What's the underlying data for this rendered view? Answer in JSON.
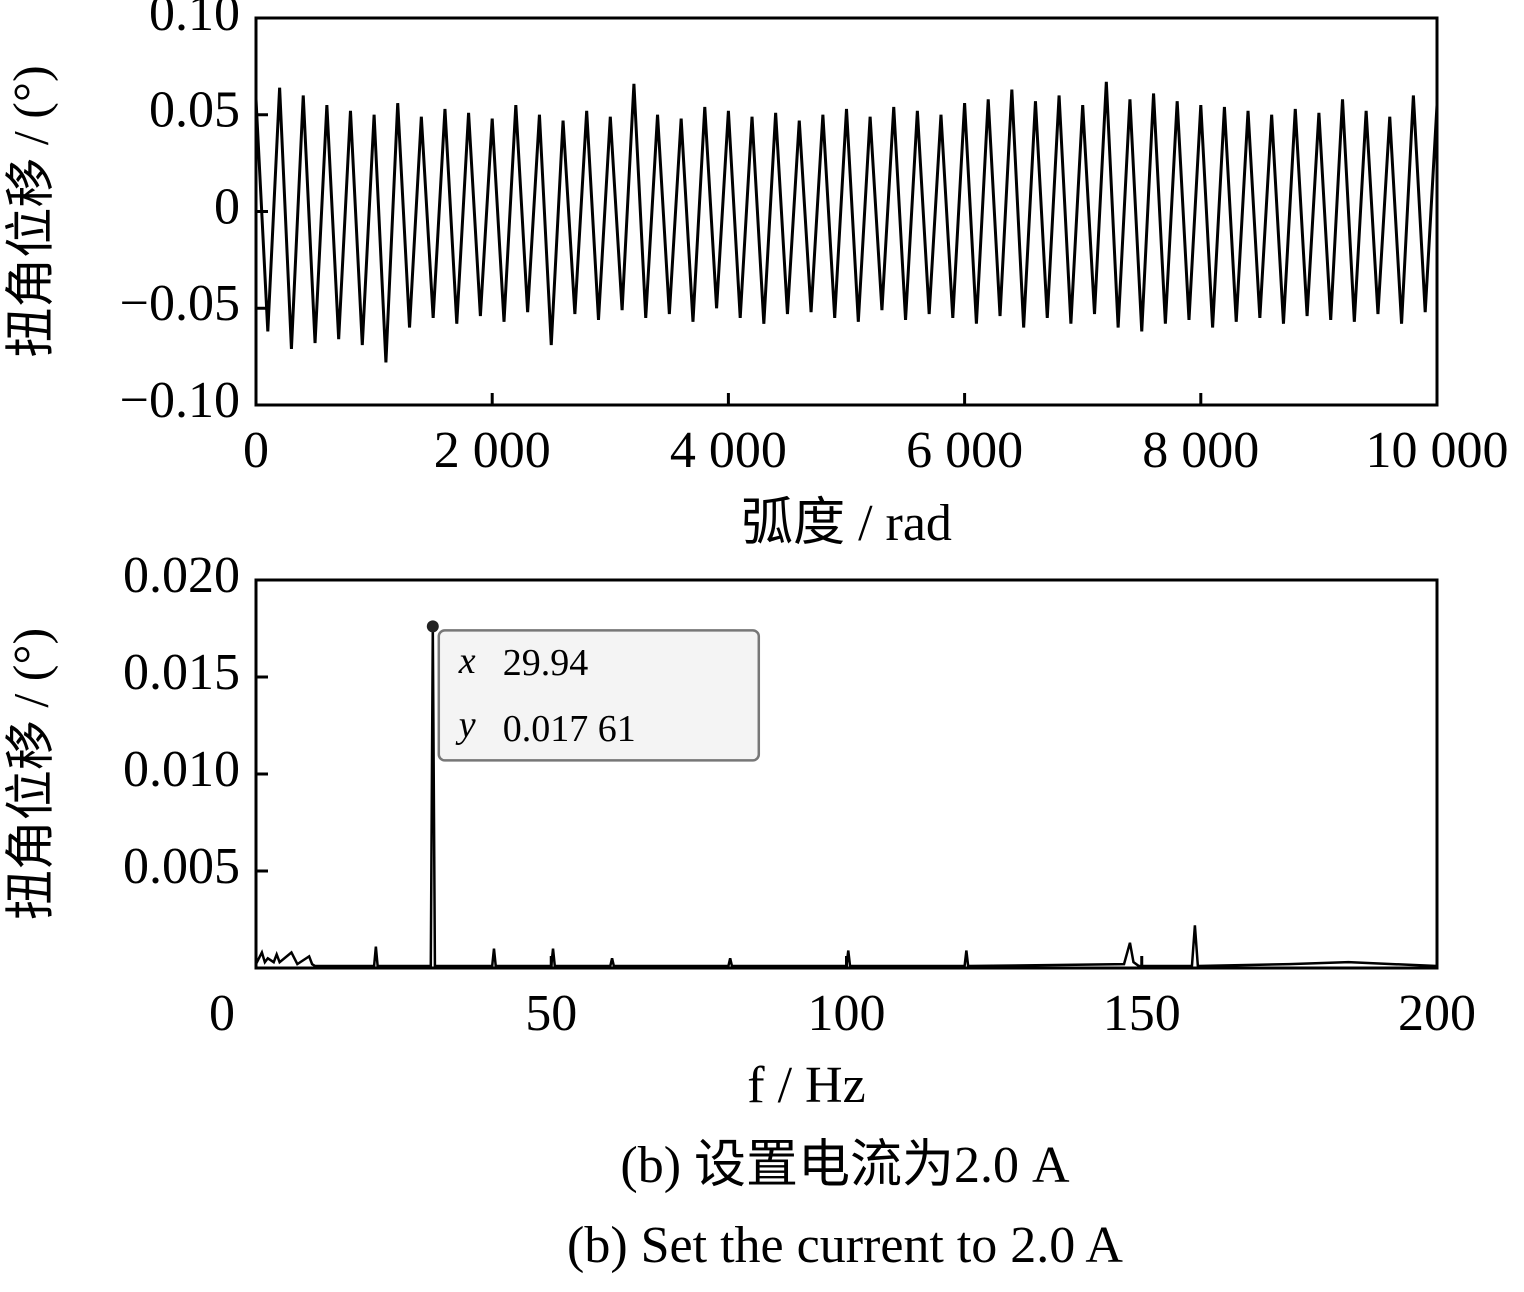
{
  "chart_data": [
    {
      "type": "line",
      "x_label": "弧度 / rad",
      "y_label": "扭角位移 / (°)",
      "color": "#000000",
      "grid": false,
      "xlim": [
        0,
        10000
      ],
      "ylim": [
        -0.1,
        0.1
      ],
      "xticks": [
        0,
        {
          "value": 2000,
          "label": "2 000"
        },
        {
          "value": 4000,
          "label": "4 000"
        },
        {
          "value": 6000,
          "label": "6 000"
        },
        {
          "value": 8000,
          "label": "8 000"
        },
        {
          "value": 10000,
          "label": "10 000"
        }
      ],
      "yticks": [
        {
          "value": -0.1,
          "label": "−0.10"
        },
        {
          "value": -0.05,
          "label": "−0.05"
        },
        0,
        {
          "value": 0.05,
          "label": "0.05"
        },
        {
          "value": 0.1,
          "label": "0.10"
        }
      ],
      "x": [
        0,
        100,
        200,
        300,
        400,
        500,
        600,
        700,
        800,
        900,
        1000,
        1100,
        1200,
        1300,
        1400,
        1500,
        1600,
        1700,
        1800,
        1900,
        2000,
        2100,
        2200,
        2300,
        2400,
        2500,
        2600,
        2700,
        2800,
        2900,
        3000,
        3100,
        3200,
        3300,
        3400,
        3500,
        3600,
        3700,
        3800,
        3900,
        4000,
        4100,
        4200,
        4300,
        4400,
        4500,
        4600,
        4700,
        4800,
        4900,
        5000,
        5100,
        5200,
        5300,
        5400,
        5500,
        5600,
        5700,
        5800,
        5900,
        6000,
        6100,
        6200,
        6300,
        6400,
        6500,
        6600,
        6700,
        6800,
        6900,
        7000,
        7100,
        7200,
        7300,
        7400,
        7500,
        7600,
        7700,
        7800,
        7900,
        8000,
        8100,
        8200,
        8300,
        8400,
        8500,
        8600,
        8700,
        8800,
        8900,
        9000,
        9100,
        9200,
        9300,
        9400,
        9500,
        9600,
        9700,
        9800,
        9900,
        10000
      ],
      "values": [
        0.058,
        -0.062,
        0.064,
        -0.071,
        0.06,
        -0.068,
        0.055,
        -0.066,
        0.052,
        -0.069,
        0.05,
        -0.078,
        0.056,
        -0.06,
        0.049,
        -0.055,
        0.053,
        -0.058,
        0.051,
        -0.054,
        0.048,
        -0.057,
        0.055,
        -0.052,
        0.05,
        -0.069,
        0.047,
        -0.053,
        0.052,
        -0.056,
        0.049,
        -0.051,
        0.066,
        -0.055,
        0.05,
        -0.053,
        0.048,
        -0.057,
        0.054,
        -0.05,
        0.052,
        -0.055,
        0.049,
        -0.058,
        0.051,
        -0.053,
        0.047,
        -0.052,
        0.05,
        -0.055,
        0.053,
        -0.057,
        0.049,
        -0.051,
        0.054,
        -0.056,
        0.052,
        -0.053,
        0.05,
        -0.055,
        0.056,
        -0.058,
        0.058,
        -0.054,
        0.063,
        -0.06,
        0.057,
        -0.055,
        0.06,
        -0.058,
        0.055,
        -0.053,
        0.067,
        -0.06,
        0.058,
        -0.062,
        0.061,
        -0.058,
        0.057,
        -0.056,
        0.055,
        -0.06,
        0.054,
        -0.057,
        0.052,
        -0.055,
        0.05,
        -0.058,
        0.053,
        -0.054,
        0.051,
        -0.056,
        0.058,
        -0.057,
        0.052,
        -0.053,
        0.049,
        -0.058,
        0.06,
        -0.052,
        0.055
      ]
    },
    {
      "type": "line",
      "x_label": "f / Hz",
      "y_label": "扭角位移 / (°)",
      "color": "#000000",
      "grid": false,
      "xlim": [
        0,
        200
      ],
      "ylim": [
        0,
        0.02
      ],
      "xticks": [
        0,
        50,
        100,
        150,
        200
      ],
      "yticks": [
        0.005,
        {
          "value": 0.01,
          "label": "0.010"
        },
        0.015,
        {
          "value": 0.02,
          "label": "0.020"
        }
      ],
      "x": [
        0,
        1,
        1.5,
        2,
        3,
        3.5,
        4,
        6,
        7,
        9,
        9.5,
        10,
        20,
        20.3,
        20.6,
        29.6,
        29.94,
        30.3,
        40,
        40.3,
        40.6,
        50,
        50.3,
        50.6,
        60,
        60.3,
        60.6,
        80,
        80.3,
        80.6,
        100,
        100.3,
        100.6,
        120,
        120.3,
        120.6,
        147,
        148,
        148.6,
        149.5,
        158.5,
        159,
        159.5,
        175,
        185,
        200
      ],
      "values": [
        0.0002,
        0.0008,
        0.0003,
        0.0005,
        0.0003,
        0.0007,
        0.0003,
        0.0008,
        0.0002,
        0.0006,
        0.0002,
        0.0001,
        0.0001,
        0.0011,
        0.0001,
        0.0001,
        0.01761,
        0.0001,
        0.0001,
        0.001,
        0.0001,
        0.0001,
        0.001,
        0.0001,
        0.0001,
        0.0005,
        0.0001,
        0.0001,
        0.0005,
        0.0001,
        0.0001,
        0.0009,
        0.0001,
        0.0001,
        0.0009,
        0.0001,
        0.0002,
        0.0013,
        0.0003,
        0.0001,
        0.0001,
        0.0022,
        0.0001,
        0.0002,
        0.0003,
        0.0001
      ],
      "annotation": {
        "x": 29.94,
        "y": 0.01761,
        "x_name": "x",
        "x_text": "29.94",
        "y_name": "y",
        "y_text": "0.017 61"
      }
    }
  ],
  "captions": [
    "(b)  设置电流为2.0 A",
    "(b)  Set the current to 2.0 A"
  ]
}
